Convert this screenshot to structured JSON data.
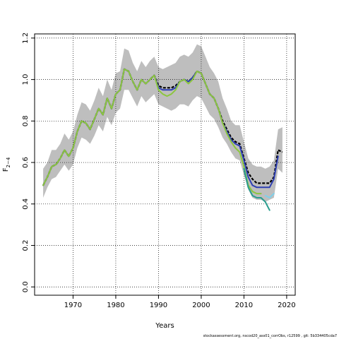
{
  "chart_data": {
    "type": "line",
    "title": "",
    "xlabel": "Years",
    "ylabel": "F2-4",
    "ylabel_main": "F",
    "ylabel_sub": "2−4",
    "xlim": [
      1961,
      2022
    ],
    "ylim": [
      -0.04,
      1.22
    ],
    "x_ticks": [
      1970,
      1980,
      1990,
      2000,
      2010,
      2020
    ],
    "x_tick_labels": [
      "1970",
      "1980",
      "1990",
      "2000",
      "2010",
      "2020"
    ],
    "y_ticks": [
      0.0,
      0.2,
      0.4,
      0.6,
      0.8,
      1.0,
      1.2
    ],
    "y_tick_labels": [
      "0.0",
      "0.2",
      "0.4",
      "0.6",
      "0.8",
      "1.0",
      "1.2"
    ],
    "grid": true,
    "grid_style": "dotted",
    "confidence_band": {
      "color": "#bebebe",
      "x": [
        1963,
        1964,
        1965,
        1966,
        1967,
        1968,
        1969,
        1970,
        1971,
        1972,
        1973,
        1974,
        1975,
        1976,
        1977,
        1978,
        1979,
        1980,
        1981,
        1982,
        1983,
        1984,
        1985,
        1986,
        1987,
        1988,
        1989,
        1990,
        1991,
        1992,
        1993,
        1994,
        1995,
        1996,
        1997,
        1998,
        1999,
        2000,
        2001,
        2002,
        2003,
        2004,
        2005,
        2006,
        2007,
        2008,
        2009,
        2010,
        2011,
        2012,
        2013,
        2014,
        2015,
        2016,
        2017,
        2018,
        2019
      ],
      "lower": [
        0.43,
        0.48,
        0.52,
        0.53,
        0.56,
        0.59,
        0.56,
        0.59,
        0.67,
        0.72,
        0.71,
        0.69,
        0.73,
        0.78,
        0.75,
        0.82,
        0.78,
        0.84,
        0.86,
        0.95,
        0.95,
        0.91,
        0.87,
        0.92,
        0.89,
        0.91,
        0.93,
        0.88,
        0.87,
        0.86,
        0.85,
        0.86,
        0.88,
        0.88,
        0.87,
        0.9,
        0.92,
        0.91,
        0.87,
        0.83,
        0.81,
        0.77,
        0.72,
        0.69,
        0.65,
        0.62,
        0.61,
        0.54,
        0.47,
        0.43,
        0.42,
        0.42,
        0.41,
        0.42,
        0.43,
        0.57,
        0.55
      ],
      "upper": [
        0.57,
        0.6,
        0.66,
        0.66,
        0.69,
        0.74,
        0.71,
        0.75,
        0.83,
        0.89,
        0.88,
        0.85,
        0.9,
        0.96,
        0.92,
        1.0,
        0.95,
        1.03,
        1.04,
        1.15,
        1.14,
        1.08,
        1.04,
        1.09,
        1.06,
        1.09,
        1.11,
        1.06,
        1.05,
        1.06,
        1.07,
        1.08,
        1.11,
        1.12,
        1.11,
        1.13,
        1.17,
        1.16,
        1.11,
        1.06,
        1.03,
        0.99,
        0.91,
        0.86,
        0.8,
        0.78,
        0.78,
        0.7,
        0.62,
        0.59,
        0.58,
        0.58,
        0.57,
        0.58,
        0.61,
        0.76,
        0.77
      ]
    },
    "series": [
      {
        "color": "#000000",
        "dashed": true,
        "x": [
          1963,
          1964,
          1965,
          1966,
          1967,
          1968,
          1969,
          1970,
          1971,
          1972,
          1973,
          1974,
          1975,
          1976,
          1977,
          1978,
          1979,
          1980,
          1981,
          1982,
          1983,
          1984,
          1985,
          1986,
          1987,
          1988,
          1989,
          1990,
          1991,
          1992,
          1993,
          1994,
          1995,
          1996,
          1997,
          1998,
          1999,
          2000,
          2001,
          2002,
          2003,
          2004,
          2005,
          2006,
          2007,
          2008,
          2009,
          2010,
          2011,
          2012,
          2013,
          2014,
          2015,
          2016,
          2017,
          2018,
          2019
        ],
        "values": [
          0.49,
          0.53,
          0.58,
          0.59,
          0.62,
          0.66,
          0.63,
          0.67,
          0.75,
          0.8,
          0.79,
          0.76,
          0.81,
          0.86,
          0.83,
          0.91,
          0.86,
          0.93,
          0.95,
          1.05,
          1.04,
          0.99,
          0.95,
          1.0,
          0.98,
          1.0,
          1.02,
          0.97,
          0.96,
          0.96,
          0.96,
          0.97,
          0.99,
          1.0,
          0.99,
          1.01,
          1.04,
          1.03,
          0.98,
          0.93,
          0.91,
          0.86,
          0.8,
          0.76,
          0.72,
          0.7,
          0.69,
          0.62,
          0.55,
          0.52,
          0.5,
          0.5,
          0.5,
          0.5,
          0.53,
          0.66,
          0.65
        ]
      },
      {
        "color": "#2e3fb3",
        "dashed": false,
        "x": [
          1963,
          1964,
          1965,
          1966,
          1967,
          1968,
          1969,
          1970,
          1971,
          1972,
          1973,
          1974,
          1975,
          1976,
          1977,
          1978,
          1979,
          1980,
          1981,
          1982,
          1983,
          1984,
          1985,
          1986,
          1987,
          1988,
          1989,
          1990,
          1991,
          1992,
          1993,
          1994,
          1995,
          1996,
          1997,
          1998,
          1999,
          2000,
          2001,
          2002,
          2003,
          2004,
          2005,
          2006,
          2007,
          2008,
          2009,
          2010,
          2011,
          2012,
          2013,
          2014,
          2015,
          2016,
          2017,
          2018
        ],
        "values": [
          0.49,
          0.53,
          0.58,
          0.59,
          0.62,
          0.66,
          0.63,
          0.67,
          0.75,
          0.8,
          0.79,
          0.76,
          0.81,
          0.86,
          0.83,
          0.91,
          0.86,
          0.93,
          0.95,
          1.05,
          1.04,
          0.99,
          0.95,
          1.0,
          0.98,
          1.0,
          1.02,
          0.96,
          0.95,
          0.95,
          0.95,
          0.96,
          0.99,
          1.0,
          0.99,
          1.01,
          1.04,
          1.03,
          0.98,
          0.93,
          0.91,
          0.86,
          0.79,
          0.75,
          0.71,
          0.69,
          0.68,
          0.61,
          0.53,
          0.49,
          0.48,
          0.48,
          0.48,
          0.48,
          0.52,
          0.63
        ]
      },
      {
        "color": "#8cc63f",
        "dashed": false,
        "x": [
          1963,
          1964,
          1965,
          1966,
          1967,
          1968,
          1969,
          1970,
          1971,
          1972,
          1973,
          1974,
          1975,
          1976,
          1977,
          1978,
          1979,
          1980,
          1981,
          1982,
          1983,
          1984,
          1985,
          1986,
          1987,
          1988,
          1989,
          1990,
          1991,
          1992,
          1993,
          1994,
          1995,
          1996,
          1997,
          1998,
          1999,
          2000,
          2001,
          2002,
          2003,
          2004,
          2005,
          2006,
          2007,
          2008,
          2009,
          2010,
          2011,
          2012,
          2013,
          2014
        ],
        "values": [
          0.49,
          0.53,
          0.58,
          0.59,
          0.62,
          0.66,
          0.63,
          0.67,
          0.75,
          0.8,
          0.79,
          0.76,
          0.81,
          0.86,
          0.83,
          0.91,
          0.86,
          0.93,
          0.95,
          1.05,
          1.04,
          0.99,
          0.95,
          1.0,
          0.98,
          1.0,
          1.02,
          0.95,
          0.93,
          0.92,
          0.93,
          0.95,
          0.99,
          1.0,
          0.98,
          1.0,
          1.04,
          1.03,
          0.98,
          0.93,
          0.91,
          0.86,
          0.79,
          0.74,
          0.7,
          0.67,
          0.65,
          0.58,
          0.49,
          0.46,
          0.45,
          0.45
        ]
      },
      {
        "color": "#2a9d8f",
        "dashed": false,
        "x": [
          2010,
          2011,
          2012,
          2013,
          2014,
          2015,
          2016
        ],
        "values": [
          0.57,
          0.48,
          0.44,
          0.43,
          0.43,
          0.41,
          0.37
        ]
      },
      {
        "color": "#7fd0ea",
        "dashed": false,
        "x": [
          2015,
          2016,
          2017
        ],
        "values": [
          0.44,
          0.43,
          0.45
        ]
      }
    ]
  },
  "footer": {
    "note": "stockassessment.org, nscod20_ass01_corrObs, r12599 , git: 5b334405cda7"
  }
}
